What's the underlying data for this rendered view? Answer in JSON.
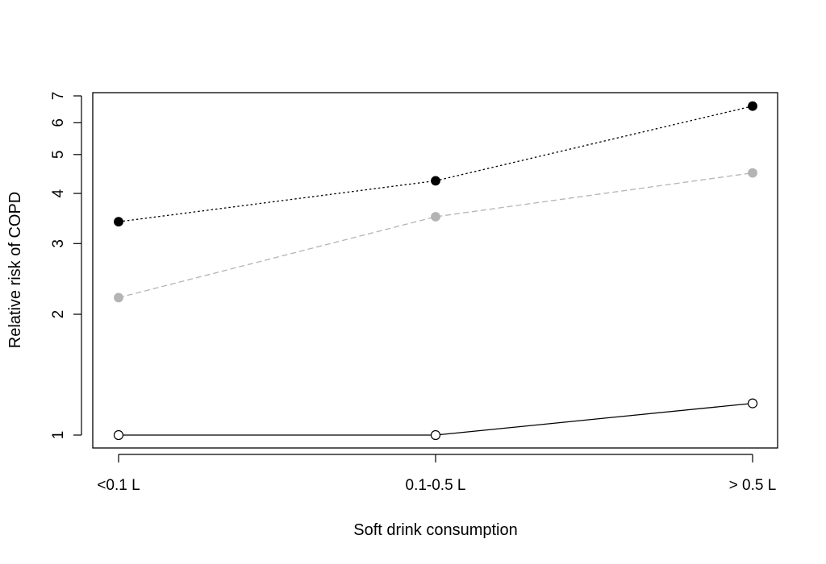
{
  "chart_data": {
    "type": "line",
    "title": "",
    "xlabel": "Soft drink consumption",
    "ylabel": "Relative risk of COPD",
    "categories": [
      "<0.1 L",
      "0.1-0.5 L",
      "> 0.5 L"
    ],
    "yscale": "log",
    "ylim": [
      0.95,
      7.2
    ],
    "yticks": [
      1,
      2,
      3,
      4,
      5,
      6,
      7
    ],
    "grid": false,
    "legend": "none",
    "series": [
      {
        "values": [
          3.4,
          4.3,
          6.6
        ],
        "line_style": "dotted",
        "line_color": "#000000",
        "marker": "filled-circle",
        "marker_color": "#000000"
      },
      {
        "values": [
          2.2,
          3.5,
          4.5
        ],
        "line_style": "dashed",
        "line_color": "#b4b4b4",
        "marker": "filled-circle",
        "marker_color": "#b4b4b4"
      },
      {
        "values": [
          1.0,
          1.0,
          1.2
        ],
        "line_style": "solid",
        "line_color": "#000000",
        "marker": "open-circle",
        "marker_color": "#000000"
      }
    ]
  }
}
